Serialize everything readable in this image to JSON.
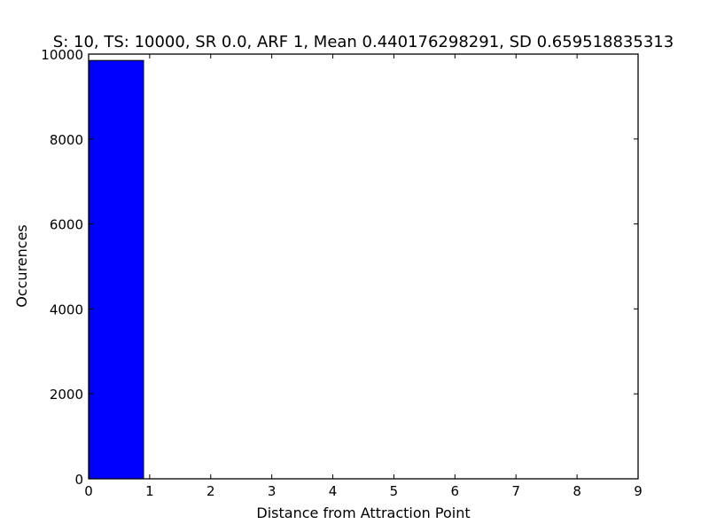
{
  "chart_data": {
    "type": "bar",
    "title": "S: 10, TS: 10000, SR 0.0, ARF 1, Mean 0.440176298291, SD 0.659518835313",
    "xlabel": "Distance from Attraction Point",
    "ylabel": "Occurences",
    "xlim": [
      0,
      9
    ],
    "ylim": [
      0,
      10000
    ],
    "xticks": [
      0,
      1,
      2,
      3,
      4,
      5,
      6,
      7,
      8,
      9
    ],
    "yticks": [
      0,
      2000,
      4000,
      6000,
      8000,
      10000
    ],
    "bins": [
      {
        "x0": 0.0,
        "x1": 0.9,
        "value": 9850
      },
      {
        "x0": 0.9,
        "x1": 1.8,
        "value": 0
      },
      {
        "x0": 1.8,
        "x1": 2.7,
        "value": 0
      },
      {
        "x0": 2.7,
        "x1": 3.6,
        "value": 0
      },
      {
        "x0": 3.6,
        "x1": 4.5,
        "value": 0
      },
      {
        "x0": 4.5,
        "x1": 5.4,
        "value": 0
      },
      {
        "x0": 5.4,
        "x1": 6.3,
        "value": 0
      },
      {
        "x0": 6.3,
        "x1": 7.2,
        "value": 0
      },
      {
        "x0": 7.2,
        "x1": 8.1,
        "value": 0
      },
      {
        "x0": 8.1,
        "x1": 9.0,
        "value": 0
      }
    ],
    "bar_color": "#0000ff",
    "grid": false,
    "legend": "none"
  }
}
